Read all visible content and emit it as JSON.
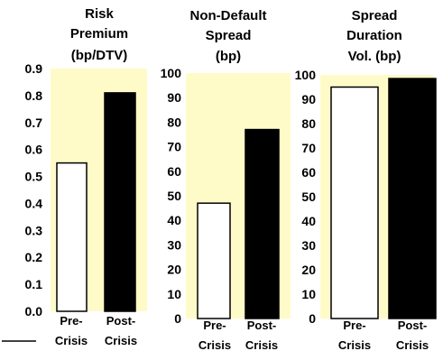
{
  "chart_data": [
    {
      "type": "bar",
      "title_lines": [
        "Risk",
        "Premium",
        "(bp/DTV)"
      ],
      "categories": [
        [
          "Pre-",
          "Crisis"
        ],
        [
          "Post-",
          "Crisis"
        ]
      ],
      "values": [
        0.55,
        0.81
      ],
      "ylim": [
        0,
        0.9
      ],
      "yticks": [
        "0.0",
        "0.1",
        "0.2",
        "0.3",
        "0.4",
        "0.5",
        "0.6",
        "0.7",
        "0.8",
        "0.9"
      ],
      "grid": false,
      "colors": {
        "plot_bg": "#fffbc8",
        "bars": [
          "#ffffff",
          "#000000"
        ]
      }
    },
    {
      "type": "bar",
      "title_lines": [
        "Non-Default",
        "Spread",
        "(bp)"
      ],
      "categories": [
        [
          "Pre-",
          "Crisis"
        ],
        [
          "Post-",
          "Crisis"
        ]
      ],
      "values": [
        47,
        77
      ],
      "ylim": [
        0,
        100
      ],
      "yticks": [
        "0",
        "10",
        "20",
        "30",
        "40",
        "50",
        "60",
        "70",
        "80",
        "90",
        "100"
      ],
      "grid": false,
      "colors": {
        "plot_bg": "#fffbc8",
        "bars": [
          "#ffffff",
          "#000000"
        ]
      }
    },
    {
      "type": "bar",
      "title_lines": [
        "Spread",
        "Duration",
        "Vol. (bp)"
      ],
      "categories": [
        [
          "Pre-",
          "Crisis"
        ],
        [
          "Post-",
          "Crisis"
        ]
      ],
      "values": [
        95,
        98.5
      ],
      "ylim": [
        0,
        100
      ],
      "yticks": [
        "0",
        "10",
        "20",
        "30",
        "40",
        "50",
        "60",
        "70",
        "80",
        "90",
        "100"
      ],
      "grid": false,
      "colors": {
        "plot_bg": "#fffbc8",
        "bars": [
          "#ffffff",
          "#000000"
        ]
      }
    }
  ]
}
